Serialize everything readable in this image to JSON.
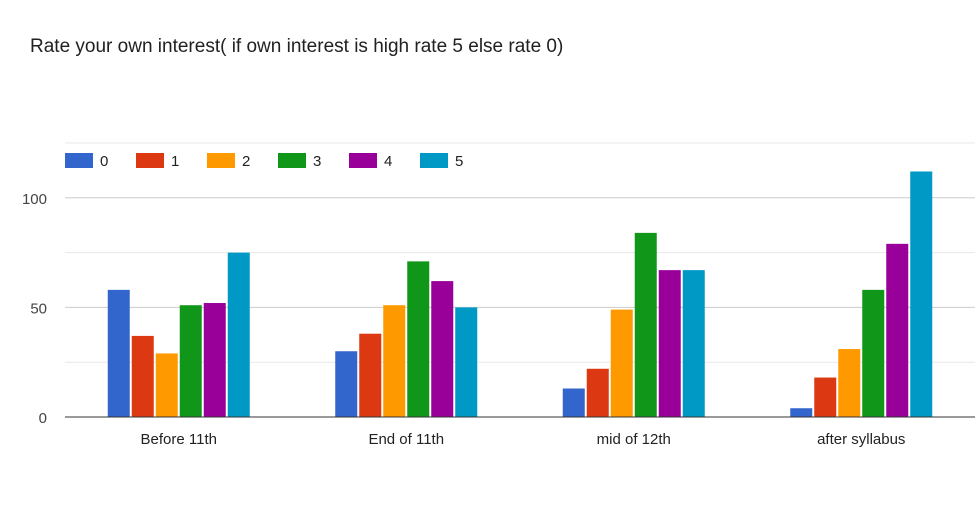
{
  "chart_data": {
    "type": "bar",
    "title": "Rate your own interest( if own interest is high rate 5 else rate 0)",
    "xlabel": "",
    "ylabel": "",
    "categories": [
      "Before 11th",
      "End of 11th",
      "mid of 12th",
      "after syllabus"
    ],
    "series": [
      {
        "name": "0",
        "color": "#3366cc",
        "values": [
          58,
          30,
          13,
          4
        ]
      },
      {
        "name": "1",
        "color": "#dc3912",
        "values": [
          37,
          38,
          22,
          18
        ]
      },
      {
        "name": "2",
        "color": "#ff9900",
        "values": [
          29,
          51,
          49,
          31
        ]
      },
      {
        "name": "3",
        "color": "#109618",
        "values": [
          51,
          71,
          84,
          58
        ]
      },
      {
        "name": "4",
        "color": "#990099",
        "values": [
          52,
          62,
          67,
          79
        ]
      },
      {
        "name": "5",
        "color": "#0099c6",
        "values": [
          75,
          50,
          67,
          112
        ]
      }
    ],
    "ylim": [
      0,
      125
    ],
    "yticks": [
      0,
      50,
      100
    ],
    "grid": true,
    "legend_position": "top-left"
  }
}
